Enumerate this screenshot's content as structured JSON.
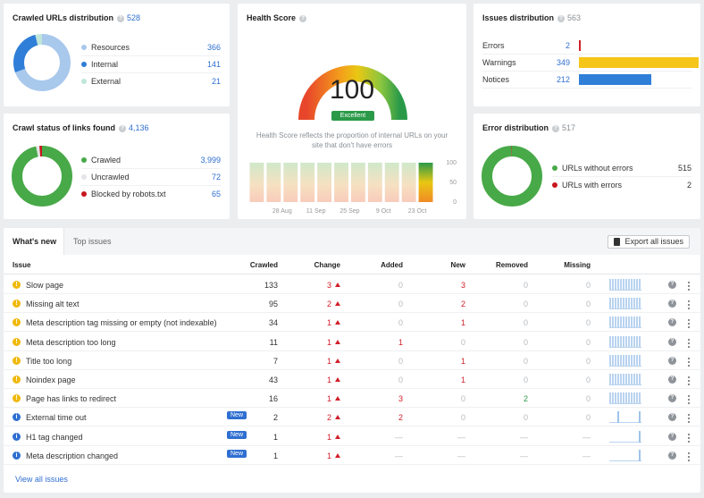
{
  "crawled_urls": {
    "title": "Crawled URLs distribution",
    "count": "528",
    "items": [
      {
        "label": "Resources",
        "value": "366",
        "color": "#a8c8ec"
      },
      {
        "label": "Internal",
        "value": "141",
        "color": "#2f7ed8"
      },
      {
        "label": "External",
        "value": "21",
        "color": "#bfe6d9"
      }
    ]
  },
  "crawl_status": {
    "title": "Crawl status of links found",
    "count": "4,136",
    "items": [
      {
        "label": "Crawled",
        "value": "3,999",
        "color": "#48a948"
      },
      {
        "label": "Uncrawled",
        "value": "72",
        "color": "#e3e5e8"
      },
      {
        "label": "Blocked by robots.txt",
        "value": "65",
        "color": "#c8161d"
      }
    ]
  },
  "health_score": {
    "title": "Health Score",
    "score": "100",
    "badge": "Excellent",
    "description": "Health Score reflects the proportion of internal URLs on your site that don't have errors",
    "x_ticks": [
      "28 Aug",
      "11 Sep",
      "25 Sep",
      "9 Oct",
      "23 Oct"
    ],
    "y_ticks": [
      "100",
      "50",
      "0"
    ],
    "history": [
      100,
      100,
      100,
      100,
      100,
      100,
      100,
      100,
      100,
      100,
      100
    ]
  },
  "issues_distribution": {
    "title": "Issues distribution",
    "count": "563",
    "items": [
      {
        "label": "Errors",
        "value": "2",
        "color": "#d0202a",
        "fraction": 0.006
      },
      {
        "label": "Warnings",
        "value": "349",
        "color": "#f5c518",
        "fraction": 1.0
      },
      {
        "label": "Notices",
        "value": "212",
        "color": "#2f7ed8",
        "fraction": 0.607
      }
    ]
  },
  "error_distribution": {
    "title": "Error distribution",
    "count": "517",
    "items": [
      {
        "label": "URLs without errors",
        "value": "515",
        "color": "#48a948"
      },
      {
        "label": "URLs with errors",
        "value": "2",
        "color": "#c8161d"
      }
    ]
  },
  "table": {
    "tabs": [
      "What's new",
      "Top issues"
    ],
    "export_label": "Export all issues",
    "headers": [
      "Issue",
      "Crawled",
      "Change",
      "Added",
      "New",
      "Removed",
      "Missing"
    ],
    "new_badge": "New",
    "view_all": "View all issues",
    "rows": [
      {
        "type": "warn",
        "issue": "Slow page",
        "badge": false,
        "crawled": "133",
        "change": "3",
        "added": "0",
        "new": "3",
        "removed": "0",
        "missing": "0",
        "spark": [
          1,
          1,
          1,
          1,
          1,
          1,
          1,
          1,
          1,
          1,
          1,
          1
        ]
      },
      {
        "type": "warn",
        "issue": "Missing alt text",
        "badge": false,
        "crawled": "95",
        "change": "2",
        "added": "0",
        "new": "2",
        "removed": "0",
        "missing": "0",
        "spark": [
          1,
          1,
          1,
          1,
          1,
          1,
          1,
          1,
          1,
          1,
          1,
          1
        ]
      },
      {
        "type": "warn",
        "issue": "Meta description tag missing or empty (not indexable)",
        "badge": false,
        "crawled": "34",
        "change": "1",
        "added": "0",
        "new": "1",
        "removed": "0",
        "missing": "0",
        "spark": [
          1,
          1,
          1,
          1,
          1,
          1,
          1,
          1,
          1,
          1,
          1,
          1
        ]
      },
      {
        "type": "warn",
        "issue": "Meta description too long",
        "badge": false,
        "crawled": "11",
        "change": "1",
        "added": "1",
        "new": "0",
        "removed": "0",
        "missing": "0",
        "spark": [
          1,
          1,
          1,
          1,
          1,
          1,
          1,
          1,
          1,
          1,
          1,
          1
        ]
      },
      {
        "type": "warn",
        "issue": "Title too long",
        "badge": false,
        "crawled": "7",
        "change": "1",
        "added": "0",
        "new": "1",
        "removed": "0",
        "missing": "0",
        "spark": [
          1,
          1,
          1,
          1,
          1,
          1,
          1,
          1,
          1,
          1,
          1,
          1
        ]
      },
      {
        "type": "warn",
        "issue": "Noindex page",
        "badge": false,
        "crawled": "43",
        "change": "1",
        "added": "0",
        "new": "1",
        "removed": "0",
        "missing": "0",
        "spark": [
          1,
          1,
          1,
          1,
          1,
          1,
          1,
          1,
          1,
          1,
          1,
          1
        ]
      },
      {
        "type": "warn",
        "issue": "Page has links to redirect",
        "badge": false,
        "crawled": "16",
        "change": "1",
        "added": "3",
        "new": "0",
        "removed": "2",
        "missing": "0",
        "spark": [
          1,
          1,
          1,
          1,
          1,
          1,
          1,
          1,
          1,
          1,
          1,
          1
        ]
      },
      {
        "type": "info",
        "issue": "External time out",
        "badge": true,
        "crawled": "2",
        "change": "2",
        "added": "2",
        "new": "0",
        "removed": "0",
        "missing": "0",
        "spark": [
          0,
          0,
          0,
          1,
          0,
          0,
          0,
          0,
          0,
          0,
          0,
          1
        ]
      },
      {
        "type": "info",
        "issue": "H1 tag changed",
        "badge": true,
        "crawled": "1",
        "change": "1",
        "added": "—",
        "new": "—",
        "removed": "—",
        "missing": "—",
        "spark": [
          0,
          0,
          0,
          0,
          0,
          0,
          0,
          0,
          0,
          0,
          0,
          1
        ]
      },
      {
        "type": "info",
        "issue": "Meta description changed",
        "badge": true,
        "crawled": "1",
        "change": "1",
        "added": "—",
        "new": "—",
        "removed": "—",
        "missing": "—",
        "spark": [
          0,
          0,
          0,
          0,
          0,
          0,
          0,
          0,
          0,
          0,
          0,
          1
        ]
      }
    ]
  }
}
